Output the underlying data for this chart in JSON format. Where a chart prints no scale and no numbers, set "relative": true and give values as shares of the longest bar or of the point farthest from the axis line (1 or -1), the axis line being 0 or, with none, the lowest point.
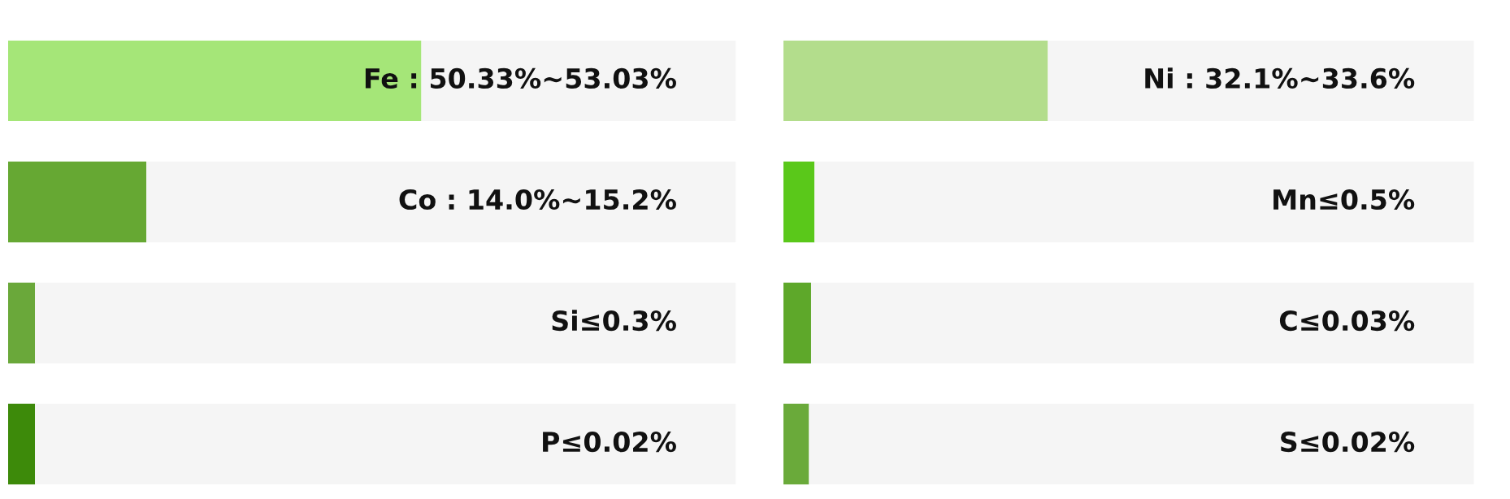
{
  "chart_data": [
    {
      "type": "bar",
      "orientation": "horizontal",
      "stacked": true,
      "relative": true,
      "categories": [
        null,
        null,
        null,
        null
      ],
      "series": [
        {
          "colors": [
            "#a5e678",
            "#66a833",
            "#6aa83a",
            "#3d8a0a"
          ],
          "values": [
            0.568,
            0.19,
            0.037,
            0.037
          ]
        },
        {
          "color": "#f5f5f5",
          "values": [
            0.432,
            0.81,
            0.963,
            0.963
          ]
        }
      ],
      "annotations": [
        "Fe : 50.33%~53.03%",
        "Co : 14.0%~15.2%",
        "Si≤0.3%",
        "P≤0.02%"
      ]
    },
    {
      "type": "bar",
      "orientation": "horizontal",
      "stacked": true,
      "relative": true,
      "categories": [
        null,
        null,
        null,
        null
      ],
      "series": [
        {
          "colors": [
            "#b3dd8c",
            "#5ac81a",
            "#5ea82a",
            "#6aaa3a"
          ],
          "values": [
            0.383,
            0.045,
            0.04,
            0.037
          ]
        },
        {
          "color": "#f5f5f5",
          "values": [
            0.617,
            0.955,
            0.96,
            0.963
          ]
        }
      ],
      "annotations": [
        "Ni : 32.1%~33.6%",
        "Mn≤0.5%",
        "C≤0.03%",
        "S≤0.02%"
      ]
    }
  ]
}
